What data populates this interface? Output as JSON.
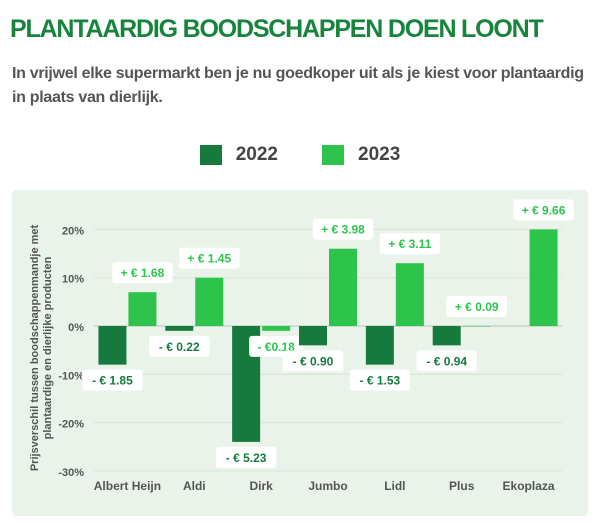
{
  "title": "PLANTAARDIG BOODSCHAPPEN DOEN LOONT",
  "subtitle": "In vrijwel elke supermarkt ben je nu goedkoper uit als je kiest voor plantaardig in plaats van dierlijk.",
  "colors": {
    "s2022": "#177a3d",
    "s2023": "#2ec44c",
    "title": "#17843b",
    "panel": "#e9f3ea"
  },
  "chart_data": {
    "type": "bar",
    "ylabel": "Prijsverschil tussen  boodschappenmandje met plantaardige en dierlijke producten",
    "ylabel_lines": [
      "Prijsverschil tussen  boodschappenmandje met",
      "plantaardige en dierlijke producten"
    ],
    "ylim": [
      -30,
      20
    ],
    "yticks": [
      20,
      10,
      0,
      -10,
      -20,
      -30
    ],
    "ytick_labels": [
      "20%",
      "10%",
      "0%",
      "-10%",
      "-20%",
      "-30%"
    ],
    "categories": [
      "Albert Heijn",
      "Aldi",
      "Dirk",
      "Jumbo",
      "Lidl",
      "Plus",
      "Ekoplaza"
    ],
    "legend": [
      "2022",
      "2023"
    ],
    "legend_position": "top-center",
    "series": [
      {
        "name": "2022",
        "values": [
          -8,
          -1,
          -24,
          -4,
          -8,
          -4,
          null
        ],
        "labels": [
          "- € 1.85",
          "- € 0.22",
          "- € 5.23",
          "- € 0.90",
          "- € 1.53",
          "- € 0.94",
          null
        ]
      },
      {
        "name": "2023",
        "values": [
          7,
          10,
          -1,
          16,
          13,
          0,
          20
        ],
        "labels": [
          "+ € 1.68",
          "+ € 1.45",
          "- €0.18",
          "+ € 3.98",
          "+ € 3.11",
          "+ € 0.09",
          "+ € 9.66"
        ]
      }
    ]
  }
}
